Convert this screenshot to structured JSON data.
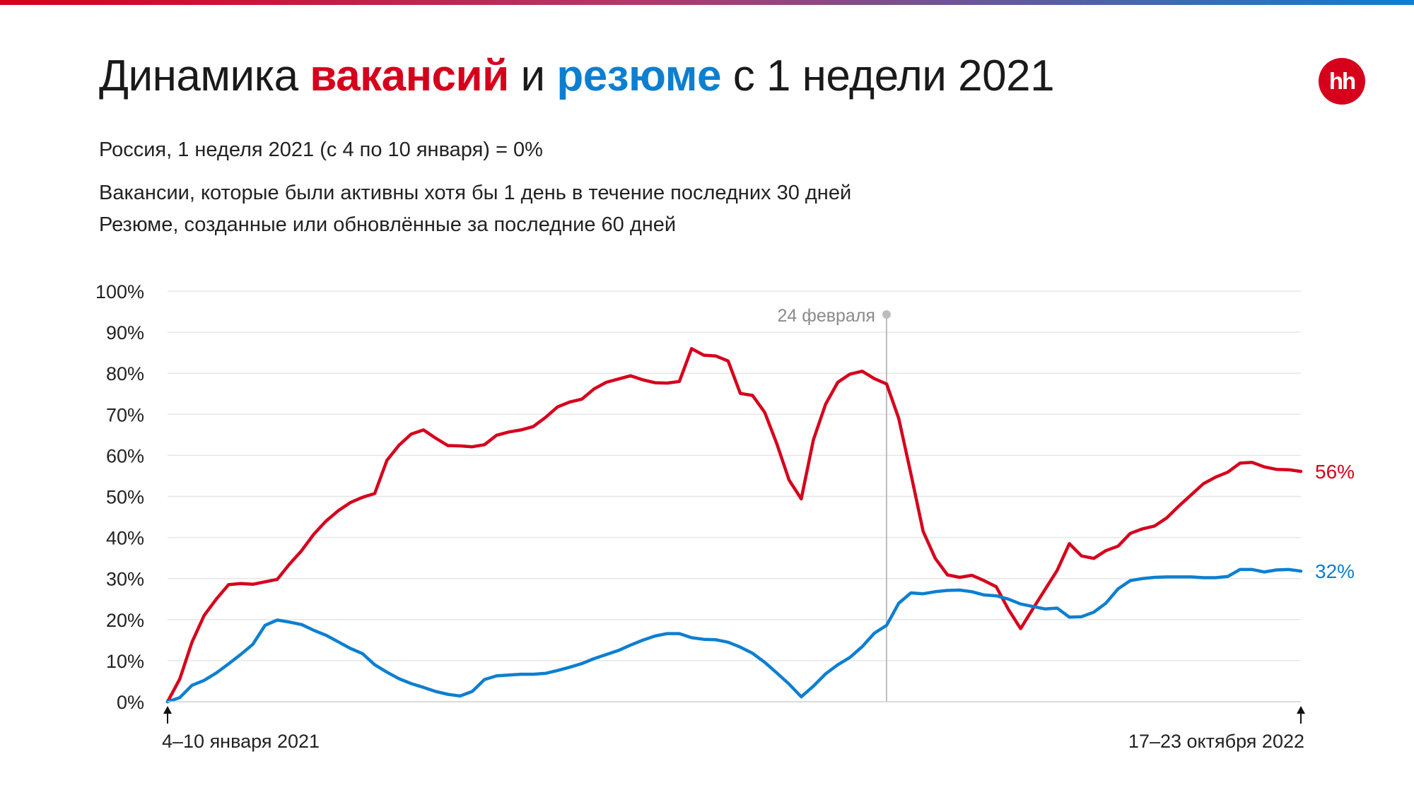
{
  "header": {
    "title_1": "Динамика ",
    "title_vacancies": "вакансий",
    "title_2": " и ",
    "title_resumes": "резюме",
    "title_3": " с 1 недели 2021",
    "subtitle": "Россия, 1 неделя 2021 (с 4 по 10 января) = 0%",
    "note_vacancies": "Вакансии, которые были активны хотя бы 1 день в течение последних 30 дней",
    "note_resumes": "Резюме, созданные или обновлённые за последние 60 дней",
    "logo_text": "hh"
  },
  "colors": {
    "vacancies": "#d6001c",
    "resumes": "#0d7fd1",
    "grid": "#e6e6e6",
    "marker": "#bdbdbd"
  },
  "chart_data": {
    "type": "line",
    "yticks": [
      "0%",
      "10%",
      "20%",
      "30%",
      "40%",
      "50%",
      "60%",
      "70%",
      "80%",
      "90%",
      "100%"
    ],
    "ylim": [
      0,
      100
    ],
    "xlim": [
      0,
      93
    ],
    "x_start_label": "4–10 января 2021",
    "x_end_label": "17–23 октября 2022",
    "annotation": {
      "label": "24 февраля",
      "x": 59
    },
    "series": [
      {
        "key": "vacancies",
        "end_label": "56%",
        "values": [
          0,
          5.5,
          14.5,
          21,
          25,
          28.5,
          28.8,
          28.6,
          29.2,
          29.8,
          33.5,
          36.8,
          40.8,
          44,
          46.5,
          48.5,
          49.8,
          50.7,
          58.8,
          62.5,
          65.2,
          66.2,
          64.2,
          62.4,
          62.3,
          62.1,
          62.6,
          64.9,
          65.7,
          66.2,
          67,
          69.2,
          71.8,
          73,
          73.7,
          76.2,
          77.8,
          78.6,
          79.4,
          78.4,
          77.7,
          77.6,
          78,
          86,
          84.4,
          84.2,
          83,
          75.1,
          74.6,
          70.5,
          62.8,
          54,
          49.4,
          63.8,
          72.5,
          77.8,
          79.8,
          80.5,
          78.7,
          77.4,
          69,
          55.5,
          41.5,
          34.9,
          30.9,
          30.3,
          30.8,
          29.5,
          28,
          22.5,
          17.8,
          22.6,
          27.3,
          32,
          38.5,
          35.5,
          34.9,
          36.8,
          37.9,
          41,
          42.1,
          42.8,
          44.8,
          47.7,
          50.4,
          53.1,
          54.7,
          55.9,
          58.1,
          58.3,
          57.2,
          56.6,
          56.5,
          56.1
        ]
      },
      {
        "key": "resumes",
        "end_label": "32%",
        "values": [
          0,
          1,
          4,
          5.2,
          7,
          9.2,
          11.5,
          14,
          18.6,
          19.9,
          19.4,
          18.8,
          17.4,
          16.2,
          14.6,
          13,
          11.7,
          9,
          7.2,
          5.6,
          4.4,
          3.5,
          2.5,
          1.8,
          1.4,
          2.5,
          5.4,
          6.3,
          6.5,
          6.7,
          6.7,
          6.9,
          7.6,
          8.4,
          9.3,
          10.5,
          11.5,
          12.5,
          13.8,
          15,
          16,
          16.6,
          16.6,
          15.6,
          15.2,
          15.1,
          14.5,
          13.3,
          11.8,
          9.6,
          7,
          4.3,
          1.2,
          3.8,
          6.8,
          9,
          10.8,
          13.4,
          16.7,
          18.6,
          24,
          26.5,
          26.3,
          26.8,
          27.1,
          27.2,
          26.8,
          26,
          25.8,
          25,
          23.8,
          23.2,
          22.6,
          22.8,
          20.6,
          20.7,
          21.8,
          24,
          27.5,
          29.5,
          30,
          30.3,
          30.4,
          30.4,
          30.4,
          30.2,
          30.2,
          30.5,
          32.2,
          32.2,
          31.6,
          32.1,
          32.2,
          31.8
        ]
      }
    ]
  }
}
